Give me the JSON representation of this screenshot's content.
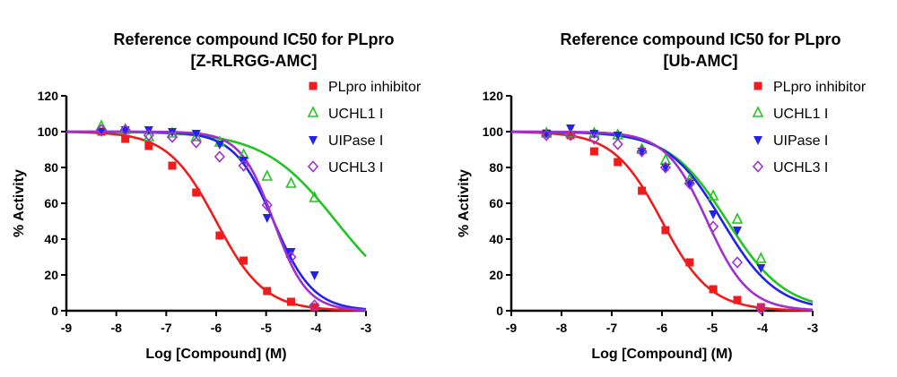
{
  "chart_data": [
    {
      "type": "line",
      "title_lines": [
        "Reference compound IC50 for PLpro",
        "[Z-RLRGG-AMC]"
      ],
      "xlabel": "Log [Compound] (M)",
      "ylabel": "% Activity",
      "xlim": [
        -9,
        -3
      ],
      "ylim": [
        0,
        120
      ],
      "xticks": [
        -9,
        -8,
        -7,
        -6,
        -5,
        -4,
        -3
      ],
      "yticks": [
        0,
        20,
        40,
        60,
        80,
        100,
        120
      ],
      "legend_position": "top-right",
      "series": [
        {
          "name": "PLpro inhibitor",
          "color": "#ee1c1c",
          "marker": "square",
          "fit": {
            "top": 100,
            "bottom": 0,
            "logIC50": -6.0,
            "hill": 0.9
          },
          "x": [
            -8.3,
            -7.82,
            -7.35,
            -6.88,
            -6.4,
            -5.93,
            -5.45,
            -4.98,
            -4.5,
            -4.03
          ],
          "y": [
            100,
            96,
            92,
            81,
            66,
            42,
            28,
            11,
            5,
            2
          ]
        },
        {
          "name": "UCHL1 I",
          "color": "#22c422",
          "marker": "triangle-open",
          "fit": {
            "top": 100,
            "bottom": 0,
            "logIC50": -3.6,
            "hill": 0.6
          },
          "x": [
            -8.3,
            -7.82,
            -7.35,
            -6.88,
            -6.4,
            -5.93,
            -5.45,
            -4.98,
            -4.5,
            -4.03
          ],
          "y": [
            103,
            101,
            97,
            99,
            97,
            94,
            87,
            75,
            71,
            63
          ]
        },
        {
          "name": "UIPase I",
          "color": "#2222ee",
          "marker": "triangle-down",
          "fit": {
            "top": 100,
            "bottom": 0,
            "logIC50": -4.85,
            "hill": 1.1
          },
          "x": [
            -8.3,
            -7.82,
            -7.35,
            -6.88,
            -6.4,
            -5.93,
            -5.45,
            -4.98,
            -4.5,
            -4.03
          ],
          "y": [
            100,
            101,
            101,
            100,
            99,
            93,
            84,
            52,
            33,
            20
          ]
        },
        {
          "name": "UCHL3 I",
          "color": "#a030d0",
          "marker": "diamond-open",
          "fit": {
            "top": 100,
            "bottom": 0,
            "logIC50": -4.85,
            "hill": 1.3
          },
          "x": [
            -8.3,
            -7.82,
            -7.35,
            -6.88,
            -6.4,
            -5.93,
            -5.45,
            -4.98,
            -4.5,
            -4.03
          ],
          "y": [
            101,
            101,
            98,
            97,
            94,
            86,
            81,
            59,
            30,
            3
          ]
        }
      ]
    },
    {
      "type": "line",
      "title_lines": [
        "Reference compound IC50 for PLpro",
        "[Ub-AMC]"
      ],
      "xlabel": "Log [Compound] (M)",
      "ylabel": "% Activity",
      "xlim": [
        -9,
        -3
      ],
      "ylim": [
        0,
        120
      ],
      "xticks": [
        -9,
        -8,
        -7,
        -6,
        -5,
        -4,
        -3
      ],
      "yticks": [
        0,
        20,
        40,
        60,
        80,
        100,
        120
      ],
      "legend_position": "top-right",
      "series": [
        {
          "name": "PLpro inhibitor",
          "color": "#ee1c1c",
          "marker": "square",
          "fit": {
            "top": 100,
            "bottom": 0,
            "logIC50": -6.0,
            "hill": 0.9
          },
          "x": [
            -8.3,
            -7.82,
            -7.35,
            -6.88,
            -6.4,
            -5.93,
            -5.45,
            -4.98,
            -4.5,
            -4.03
          ],
          "y": [
            99,
            98,
            89,
            83,
            67,
            45,
            27,
            12,
            6,
            2
          ]
        },
        {
          "name": "UCHL1 I",
          "color": "#22c422",
          "marker": "triangle-open",
          "fit": {
            "top": 100,
            "bottom": 0,
            "logIC50": -4.7,
            "hill": 0.75
          },
          "x": [
            -8.3,
            -7.82,
            -7.35,
            -6.88,
            -6.4,
            -5.93,
            -5.45,
            -4.98,
            -4.5,
            -4.03
          ],
          "y": [
            99,
            99,
            99,
            98,
            90,
            84,
            73,
            64,
            51,
            29
          ]
        },
        {
          "name": "UIPase I",
          "color": "#2222ee",
          "marker": "triangle-down",
          "fit": {
            "top": 100,
            "bottom": 0,
            "logIC50": -4.8,
            "hill": 0.8
          },
          "x": [
            -8.3,
            -7.82,
            -7.35,
            -6.88,
            -6.4,
            -5.93,
            -5.45,
            -4.98,
            -4.5,
            -4.03
          ],
          "y": [
            99,
            102,
            99,
            98,
            89,
            80,
            71,
            54,
            45,
            24
          ]
        },
        {
          "name": "UCHL3 I",
          "color": "#a030d0",
          "marker": "diamond-open",
          "fit": {
            "top": 100,
            "bottom": 0,
            "logIC50": -5.1,
            "hill": 1.05
          },
          "x": [
            -8.3,
            -7.82,
            -7.35,
            -6.88,
            -6.4,
            -5.93,
            -5.45,
            -4.98,
            -4.5,
            -4.03
          ],
          "y": [
            98,
            98,
            96,
            93,
            89,
            80,
            71,
            47,
            27,
            1
          ]
        }
      ]
    }
  ]
}
